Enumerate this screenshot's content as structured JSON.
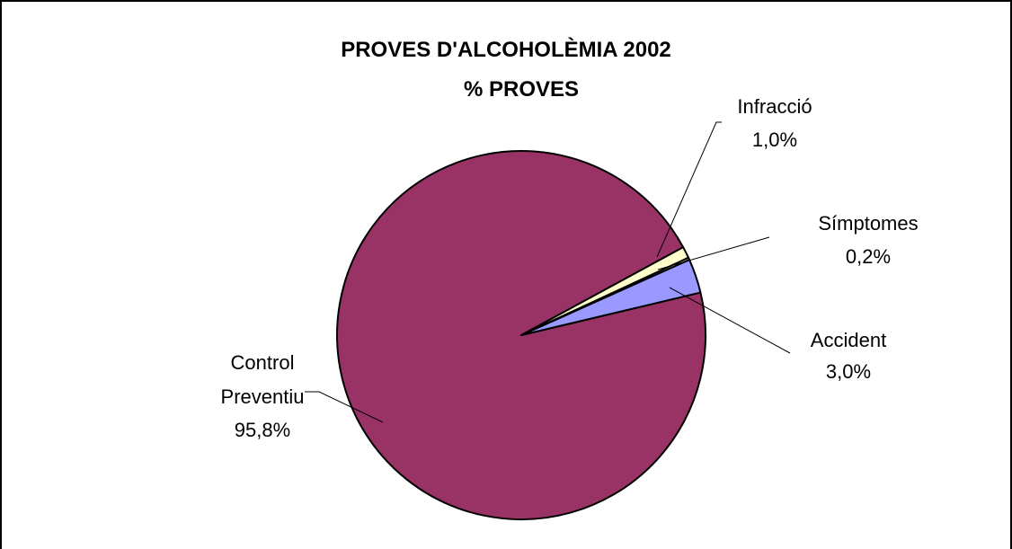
{
  "chart_data": {
    "type": "pie",
    "title": "PROVES D'ALCOHOLÈMIA 2002",
    "subtitle": "% PROVES",
    "slices": [
      {
        "name": "Control Preventiu",
        "label_lines": [
          "Control",
          "Preventiu"
        ],
        "value": 95.8,
        "value_label": "95,8%",
        "color": "#993366"
      },
      {
        "name": "Accident",
        "label_lines": [
          "Accident"
        ],
        "value": 3.0,
        "value_label": "3,0%",
        "color": "#9999FF"
      },
      {
        "name": "Símptomes",
        "label_lines": [
          "Símptomes"
        ],
        "value": 0.2,
        "value_label": "0,2%",
        "color": "#FFFFCC"
      },
      {
        "name": "Infracció",
        "label_lines": [
          "Infracció"
        ],
        "value": 1.0,
        "value_label": "1,0%",
        "color": "#FFFFCC"
      }
    ]
  }
}
